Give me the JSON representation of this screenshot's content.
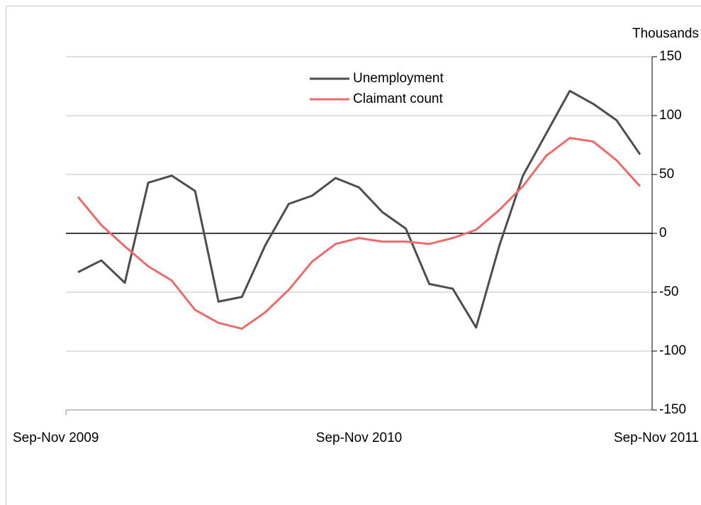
{
  "chart_data": {
    "type": "line",
    "y_label": "Thousands",
    "categories": [
      "Sep-Nov 2009",
      null,
      null,
      null,
      null,
      null,
      null,
      null,
      null,
      null,
      null,
      null,
      "Sep-Nov 2010",
      null,
      null,
      null,
      null,
      null,
      null,
      null,
      null,
      null,
      null,
      null,
      "Sep-Nov 2011"
    ],
    "series": [
      {
        "name": "Unemployment",
        "color": "#4d4d4d",
        "values": [
          -33,
          -23,
          -42,
          43,
          49,
          36,
          -58,
          -54,
          -10,
          25,
          32,
          47,
          39,
          18,
          4,
          -43,
          -47,
          -80,
          -10,
          49,
          85,
          121,
          110,
          96,
          67
        ]
      },
      {
        "name": "Claimant count",
        "color": "#ee6a6a",
        "values": [
          31,
          7,
          -11,
          -28,
          -40,
          -65,
          -76,
          -81,
          -67,
          -48,
          -24,
          -9,
          -4,
          -7,
          -7,
          -9,
          -4,
          3,
          20,
          40,
          66,
          81,
          78,
          62,
          40
        ]
      }
    ],
    "ylim": [
      -150,
      150
    ],
    "yticks": [
      -150,
      -100,
      -50,
      0,
      50,
      100,
      150
    ],
    "grid": true,
    "legend": "top"
  }
}
